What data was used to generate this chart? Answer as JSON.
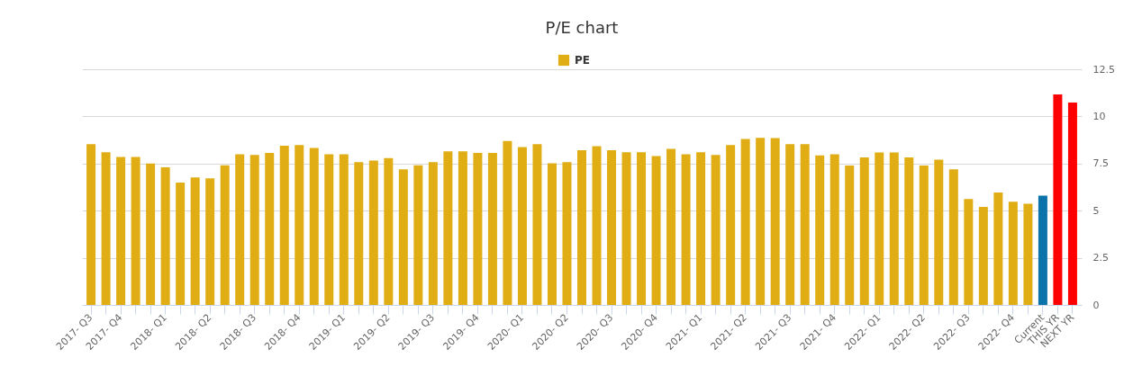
{
  "chart_data": {
    "type": "bar",
    "title": "P/E chart",
    "categories": [
      "2017- Q3",
      null,
      "2017- Q4",
      null,
      null,
      "2018- Q1",
      null,
      null,
      "2018- Q2",
      null,
      null,
      "2018- Q3",
      null,
      null,
      "2018- Q4",
      null,
      null,
      "2019- Q1",
      null,
      null,
      "2019- Q2",
      null,
      null,
      "2019- Q3",
      null,
      null,
      "2019- Q4",
      null,
      null,
      "2020- Q1",
      null,
      null,
      "2020- Q2",
      null,
      null,
      "2020- Q3",
      null,
      null,
      "2020- Q4",
      null,
      null,
      "2021- Q1",
      null,
      null,
      "2021- Q2",
      null,
      null,
      "2021- Q3",
      null,
      null,
      "2021- Q4",
      null,
      null,
      "2022- Q1",
      null,
      null,
      "2022- Q2",
      null,
      null,
      "2022- Q3",
      null,
      null,
      "2022- Q4",
      null,
      "Current",
      "THIS YR",
      "NEXT YR"
    ],
    "series": [
      {
        "name": "PE",
        "color": "#e0ae14",
        "values": [
          8.53,
          8.1,
          7.85,
          7.85,
          7.5,
          7.3,
          6.49,
          6.76,
          6.71,
          7.41,
          7.99,
          7.95,
          8.06,
          8.44,
          8.48,
          8.33,
          7.99,
          7.99,
          7.57,
          7.66,
          7.79,
          7.19,
          7.41,
          7.57,
          8.15,
          8.15,
          8.06,
          8.06,
          8.7,
          8.37,
          8.53,
          7.52,
          7.57,
          8.21,
          8.42,
          8.21,
          8.1,
          8.1,
          7.9,
          8.28,
          7.99,
          8.1,
          7.95,
          8.48,
          8.8,
          8.86,
          8.85,
          8.53,
          8.53,
          7.93,
          7.99,
          7.39,
          7.82,
          8.09,
          8.09,
          7.82,
          7.39,
          7.71,
          7.19,
          5.62,
          5.2,
          5.96,
          5.47,
          5.37,
          5.8,
          11.17,
          10.73
        ],
        "colors": [
          "#e0ae14",
          "#e0ae14",
          "#e0ae14",
          "#e0ae14",
          "#e0ae14",
          "#e0ae14",
          "#e0ae14",
          "#e0ae14",
          "#e0ae14",
          "#e0ae14",
          "#e0ae14",
          "#e0ae14",
          "#e0ae14",
          "#e0ae14",
          "#e0ae14",
          "#e0ae14",
          "#e0ae14",
          "#e0ae14",
          "#e0ae14",
          "#e0ae14",
          "#e0ae14",
          "#e0ae14",
          "#e0ae14",
          "#e0ae14",
          "#e0ae14",
          "#e0ae14",
          "#e0ae14",
          "#e0ae14",
          "#e0ae14",
          "#e0ae14",
          "#e0ae14",
          "#e0ae14",
          "#e0ae14",
          "#e0ae14",
          "#e0ae14",
          "#e0ae14",
          "#e0ae14",
          "#e0ae14",
          "#e0ae14",
          "#e0ae14",
          "#e0ae14",
          "#e0ae14",
          "#e0ae14",
          "#e0ae14",
          "#e0ae14",
          "#e0ae14",
          "#e0ae14",
          "#e0ae14",
          "#e0ae14",
          "#e0ae14",
          "#e0ae14",
          "#e0ae14",
          "#e0ae14",
          "#e0ae14",
          "#e0ae14",
          "#e0ae14",
          "#e0ae14",
          "#e0ae14",
          "#e0ae14",
          "#e0ae14",
          "#e0ae14",
          "#e0ae14",
          "#e0ae14",
          "#e0ae14",
          "#0b72aa",
          "#ff0000",
          "#ff0000"
        ]
      }
    ],
    "ylim": [
      0,
      12.5
    ],
    "yticks": [
      0,
      2.5,
      5,
      7.5,
      10,
      12.5
    ],
    "grid": "y",
    "legend": "top"
  }
}
